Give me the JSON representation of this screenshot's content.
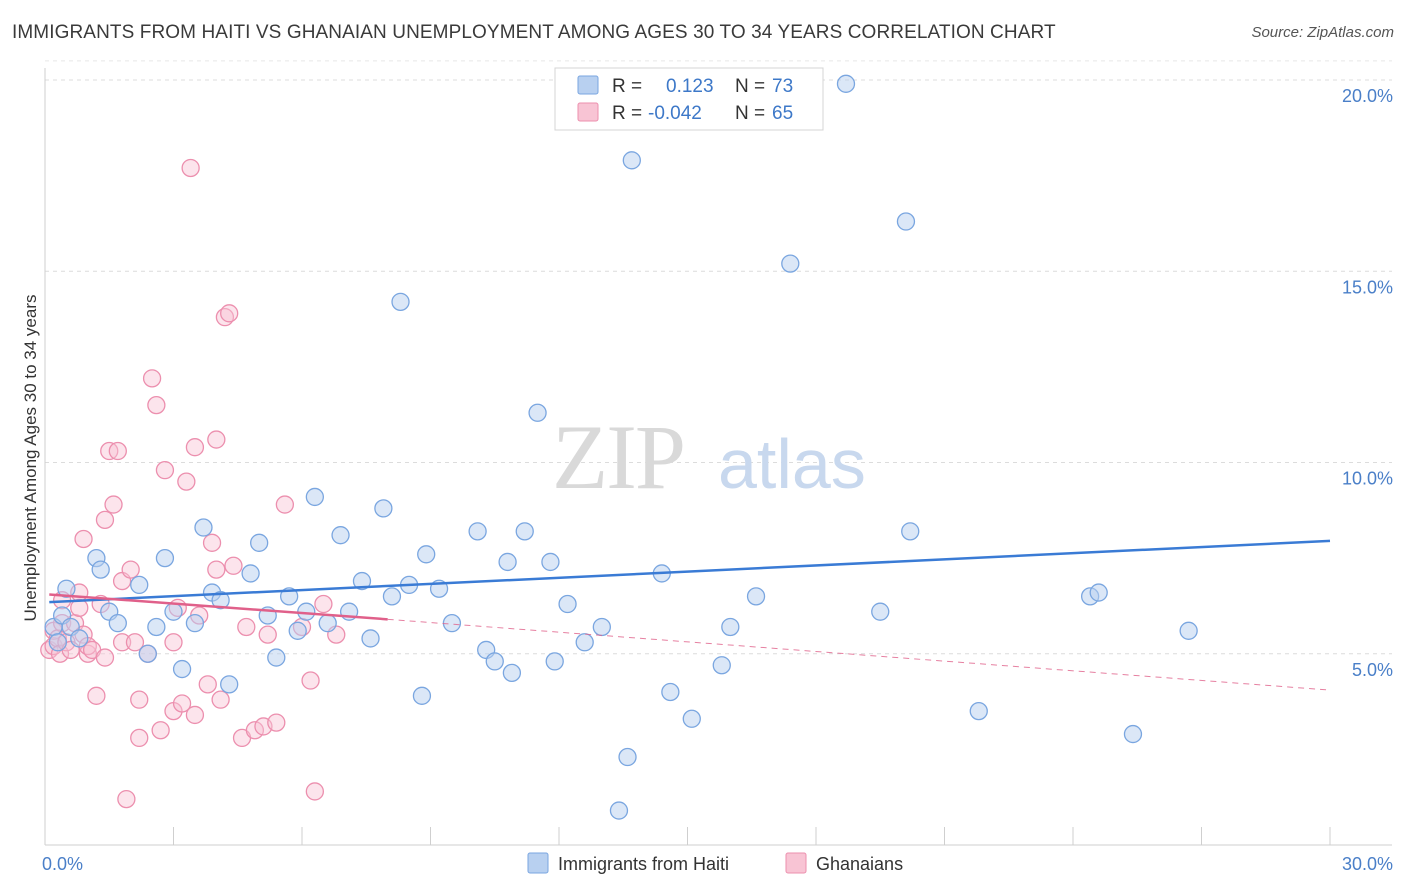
{
  "title": "IMMIGRANTS FROM HAITI VS GHANAIAN UNEMPLOYMENT AMONG AGES 30 TO 34 YEARS CORRELATION CHART",
  "source": "Source: ZipAtlas.com",
  "watermark": {
    "zip": "ZIP",
    "atlas": "atlas"
  },
  "colors": {
    "blue_fill": "#b8d0f0",
    "blue_stroke": "#7aa6e0",
    "blue_line": "#3a7bd5",
    "pink_fill": "#f8c4d4",
    "pink_stroke": "#ec8fae",
    "pink_line": "#e0608a"
  },
  "legend": {
    "r_label": "R =",
    "n_label": "N =",
    "series1_r": "0.123",
    "series1_n": "73",
    "series2_r": "-0.042",
    "series2_n": "65"
  },
  "chart_data": {
    "type": "scatter",
    "title": "IMMIGRANTS FROM HAITI VS GHANAIAN UNEMPLOYMENT AMONG AGES 30 TO 34 YEARS CORRELATION CHART",
    "xlabel": "",
    "ylabel": "Unemployment Among Ages 30 to 34 years",
    "xlim": [
      0,
      30
    ],
    "ylim": [
      0,
      20.5
    ],
    "x_tick_labels": [
      "0.0%",
      "30.0%"
    ],
    "y_ticks": [
      5,
      10,
      15,
      20
    ],
    "y_tick_labels": [
      "5.0%",
      "10.0%",
      "15.0%",
      "20.0%"
    ],
    "grid": true,
    "legend_position": "top-center",
    "series": [
      {
        "name": "Immigrants from Haiti",
        "r": 0.123,
        "n": 73,
        "trend": {
          "x0": 0.1,
          "y0": 6.35,
          "x1": 30.0,
          "y1": 7.95
        },
        "points": [
          [
            0.2,
            5.7
          ],
          [
            0.3,
            5.3
          ],
          [
            0.4,
            6.0
          ],
          [
            0.5,
            6.7
          ],
          [
            0.6,
            5.7
          ],
          [
            0.8,
            5.4
          ],
          [
            1.2,
            7.5
          ],
          [
            1.3,
            7.2
          ],
          [
            1.5,
            6.1
          ],
          [
            1.7,
            5.8
          ],
          [
            2.2,
            6.8
          ],
          [
            2.4,
            5.0
          ],
          [
            2.6,
            5.7
          ],
          [
            2.8,
            7.5
          ],
          [
            3.0,
            6.1
          ],
          [
            3.2,
            4.6
          ],
          [
            3.5,
            5.8
          ],
          [
            3.7,
            8.3
          ],
          [
            3.9,
            6.6
          ],
          [
            4.1,
            6.4
          ],
          [
            4.3,
            4.2
          ],
          [
            4.8,
            7.1
          ],
          [
            5.0,
            7.9
          ],
          [
            5.2,
            6.0
          ],
          [
            5.4,
            4.9
          ],
          [
            5.7,
            6.5
          ],
          [
            5.9,
            5.6
          ],
          [
            6.1,
            6.1
          ],
          [
            6.3,
            9.1
          ],
          [
            6.6,
            5.8
          ],
          [
            6.9,
            8.1
          ],
          [
            7.1,
            6.1
          ],
          [
            7.4,
            6.9
          ],
          [
            7.6,
            5.4
          ],
          [
            7.9,
            8.8
          ],
          [
            8.1,
            6.5
          ],
          [
            8.3,
            14.2
          ],
          [
            8.5,
            6.8
          ],
          [
            8.8,
            3.9
          ],
          [
            8.9,
            7.6
          ],
          [
            9.2,
            6.7
          ],
          [
            9.5,
            5.8
          ],
          [
            10.1,
            8.2
          ],
          [
            10.3,
            5.1
          ],
          [
            10.5,
            4.8
          ],
          [
            10.8,
            7.4
          ],
          [
            10.9,
            4.5
          ],
          [
            11.2,
            8.2
          ],
          [
            11.5,
            11.3
          ],
          [
            11.8,
            7.4
          ],
          [
            11.9,
            4.8
          ],
          [
            12.2,
            6.3
          ],
          [
            12.6,
            5.3
          ],
          [
            13.0,
            5.7
          ],
          [
            13.4,
            0.9
          ],
          [
            13.6,
            2.3
          ],
          [
            13.7,
            17.9
          ],
          [
            14.4,
            7.1
          ],
          [
            14.6,
            4.0
          ],
          [
            15.1,
            3.3
          ],
          [
            15.8,
            4.7
          ],
          [
            16.0,
            5.7
          ],
          [
            16.6,
            6.5
          ],
          [
            17.4,
            15.2
          ],
          [
            18.7,
            19.9
          ],
          [
            19.5,
            6.1
          ],
          [
            20.1,
            16.3
          ],
          [
            20.2,
            8.2
          ],
          [
            21.8,
            3.5
          ],
          [
            24.4,
            6.5
          ],
          [
            24.6,
            6.6
          ],
          [
            25.4,
            2.9
          ],
          [
            26.7,
            5.6
          ]
        ]
      },
      {
        "name": "Ghanaians",
        "r": -0.042,
        "n": 65,
        "trend_solid": {
          "x0": 0.1,
          "y0": 6.55,
          "x1": 8.0,
          "y1": 5.9
        },
        "trend_dashed": {
          "x0": 8.0,
          "y0": 5.9,
          "x1": 30.0,
          "y1": 4.05
        },
        "points": [
          [
            0.1,
            5.1
          ],
          [
            0.2,
            5.2
          ],
          [
            0.2,
            5.6
          ],
          [
            0.3,
            5.4
          ],
          [
            0.35,
            5.0
          ],
          [
            0.4,
            5.8
          ],
          [
            0.4,
            6.4
          ],
          [
            0.5,
            5.3
          ],
          [
            0.6,
            5.1
          ],
          [
            0.7,
            5.8
          ],
          [
            0.8,
            6.6
          ],
          [
            0.8,
            6.2
          ],
          [
            0.9,
            5.5
          ],
          [
            0.9,
            8.0
          ],
          [
            1.0,
            5.0
          ],
          [
            1.0,
            5.2
          ],
          [
            1.1,
            5.1
          ],
          [
            1.2,
            3.9
          ],
          [
            1.3,
            6.3
          ],
          [
            1.4,
            4.9
          ],
          [
            1.4,
            8.5
          ],
          [
            1.5,
            10.3
          ],
          [
            1.6,
            8.9
          ],
          [
            1.7,
            10.3
          ],
          [
            1.8,
            6.9
          ],
          [
            1.8,
            5.3
          ],
          [
            1.9,
            1.2
          ],
          [
            2.0,
            7.2
          ],
          [
            2.1,
            5.3
          ],
          [
            2.2,
            2.8
          ],
          [
            2.2,
            3.8
          ],
          [
            2.4,
            5.0
          ],
          [
            2.5,
            12.2
          ],
          [
            2.6,
            11.5
          ],
          [
            2.7,
            3.0
          ],
          [
            2.8,
            9.8
          ],
          [
            3.0,
            3.5
          ],
          [
            3.0,
            5.3
          ],
          [
            3.1,
            6.2
          ],
          [
            3.2,
            3.7
          ],
          [
            3.3,
            9.5
          ],
          [
            3.4,
            17.7
          ],
          [
            3.5,
            3.4
          ],
          [
            3.5,
            10.4
          ],
          [
            3.6,
            6.0
          ],
          [
            3.8,
            4.2
          ],
          [
            3.9,
            7.9
          ],
          [
            4.0,
            7.2
          ],
          [
            4.0,
            10.6
          ],
          [
            4.1,
            3.8
          ],
          [
            4.2,
            13.8
          ],
          [
            4.3,
            13.9
          ],
          [
            4.4,
            7.3
          ],
          [
            4.6,
            2.8
          ],
          [
            4.7,
            5.7
          ],
          [
            4.9,
            3.0
          ],
          [
            5.1,
            3.1
          ],
          [
            5.2,
            5.5
          ],
          [
            5.4,
            3.2
          ],
          [
            5.6,
            8.9
          ],
          [
            6.0,
            5.7
          ],
          [
            6.2,
            4.3
          ],
          [
            6.3,
            1.4
          ],
          [
            6.5,
            6.3
          ],
          [
            6.8,
            5.5
          ]
        ]
      }
    ]
  }
}
